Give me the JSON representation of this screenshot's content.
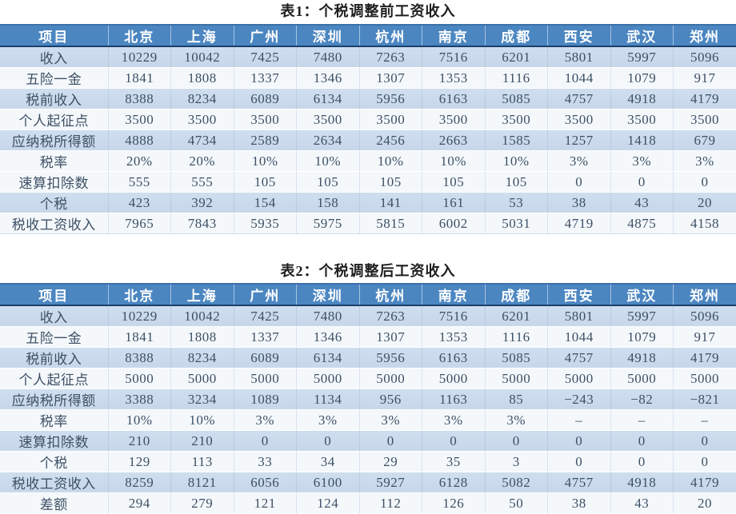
{
  "colors": {
    "header_bg": "#4b86c1",
    "header_text": "#ffffff",
    "header_border_top": "#3a70a9",
    "header_border_bottom": "#1c3f6b",
    "row_blue": "#c8d8ea",
    "row_light": "#f4f8fb",
    "cell_text": "#3d5065",
    "title_text": "#1f1f1f"
  },
  "columns": [
    "项目",
    "北京",
    "上海",
    "广州",
    "深圳",
    "杭州",
    "南京",
    "成都",
    "西安",
    "武汉",
    "郑州"
  ],
  "tables": [
    {
      "title": "表1：个税调整前工资收入",
      "rows": [
        {
          "label": "收入",
          "band": "blue",
          "values": [
            "10229",
            "10042",
            "7425",
            "7480",
            "7263",
            "7516",
            "6201",
            "5801",
            "5997",
            "5096"
          ]
        },
        {
          "label": "五险一金",
          "band": "light",
          "values": [
            "1841",
            "1808",
            "1337",
            "1346",
            "1307",
            "1353",
            "1116",
            "1044",
            "1079",
            "917"
          ]
        },
        {
          "label": "税前收入",
          "band": "blue",
          "values": [
            "8388",
            "8234",
            "6089",
            "6134",
            "5956",
            "6163",
            "5085",
            "4757",
            "4918",
            "4179"
          ]
        },
        {
          "label": "个人起征点",
          "band": "light",
          "values": [
            "3500",
            "3500",
            "3500",
            "3500",
            "3500",
            "3500",
            "3500",
            "3500",
            "3500",
            "3500"
          ]
        },
        {
          "label": "应纳税所得额",
          "band": "blue",
          "values": [
            "4888",
            "4734",
            "2589",
            "2634",
            "2456",
            "2663",
            "1585",
            "1257",
            "1418",
            "679"
          ]
        },
        {
          "label": "税率",
          "band": "light",
          "values": [
            "20%",
            "20%",
            "10%",
            "10%",
            "10%",
            "10%",
            "10%",
            "3%",
            "3%",
            "3%"
          ]
        },
        {
          "label": "速算扣除数",
          "band": "light",
          "values": [
            "555",
            "555",
            "105",
            "105",
            "105",
            "105",
            "105",
            "0",
            "0",
            "0"
          ]
        },
        {
          "label": "个税",
          "band": "blue",
          "values": [
            "423",
            "392",
            "154",
            "158",
            "141",
            "161",
            "53",
            "38",
            "43",
            "20"
          ]
        },
        {
          "label": "税收工资收入",
          "band": "light",
          "values": [
            "7965",
            "7843",
            "5935",
            "5975",
            "5815",
            "6002",
            "5031",
            "4719",
            "4875",
            "4158"
          ]
        }
      ]
    },
    {
      "title": "表2：个税调整后工资收入",
      "rows": [
        {
          "label": "收入",
          "band": "blue",
          "values": [
            "10229",
            "10042",
            "7425",
            "7480",
            "7263",
            "7516",
            "6201",
            "5801",
            "5997",
            "5096"
          ]
        },
        {
          "label": "五险一金",
          "band": "light",
          "values": [
            "1841",
            "1808",
            "1337",
            "1346",
            "1307",
            "1353",
            "1116",
            "1044",
            "1079",
            "917"
          ]
        },
        {
          "label": "税前收入",
          "band": "blue",
          "values": [
            "8388",
            "8234",
            "6089",
            "6134",
            "5956",
            "6163",
            "5085",
            "4757",
            "4918",
            "4179"
          ]
        },
        {
          "label": "个人起征点",
          "band": "light",
          "values": [
            "5000",
            "5000",
            "5000",
            "5000",
            "5000",
            "5000",
            "5000",
            "5000",
            "5000",
            "5000"
          ]
        },
        {
          "label": "应纳税所得额",
          "band": "blue",
          "values": [
            "3388",
            "3234",
            "1089",
            "1134",
            "956",
            "1163",
            "85",
            "−243",
            "−82",
            "−821"
          ]
        },
        {
          "label": "税率",
          "band": "light",
          "values": [
            "10%",
            "10%",
            "3%",
            "3%",
            "3%",
            "3%",
            "3%",
            "–",
            "–",
            "–"
          ]
        },
        {
          "label": "速算扣除数",
          "band": "blue",
          "values": [
            "210",
            "210",
            "0",
            "0",
            "0",
            "0",
            "0",
            "0",
            "0",
            "0"
          ]
        },
        {
          "label": "个税",
          "band": "light",
          "values": [
            "129",
            "113",
            "33",
            "34",
            "29",
            "35",
            "3",
            "0",
            "0",
            "0"
          ]
        },
        {
          "label": "税收工资收入",
          "band": "blue",
          "values": [
            "8259",
            "8121",
            "6056",
            "6100",
            "5927",
            "6128",
            "5082",
            "4757",
            "4918",
            "4179"
          ]
        },
        {
          "label": "差额",
          "band": "light",
          "values": [
            "294",
            "279",
            "121",
            "124",
            "112",
            "126",
            "50",
            "38",
            "43",
            "20"
          ]
        }
      ]
    }
  ]
}
